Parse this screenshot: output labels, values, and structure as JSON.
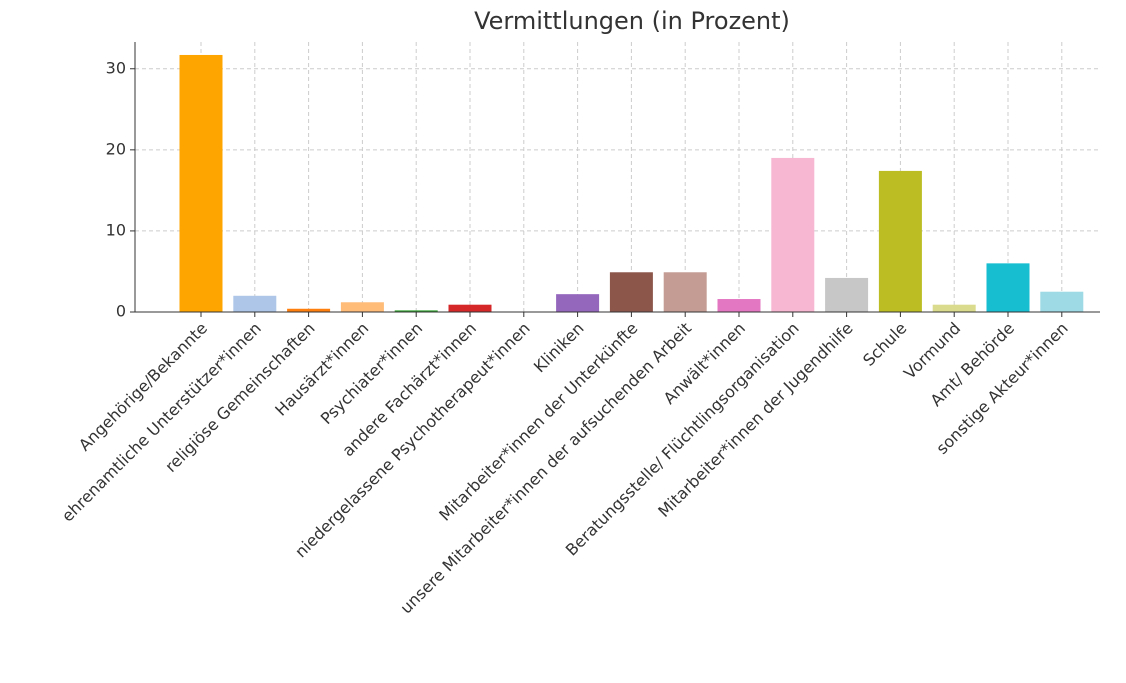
{
  "chart_data": {
    "type": "bar",
    "title": "Vermittlungen (in Prozent)",
    "categories": [
      "Angehörige/Bekannte",
      "ehrenamtliche Unterstützer*innen",
      "religiöse Gemeinschaften",
      "Hausärzt*innen",
      "Psychiater*innen",
      "andere Fachärzt*innen",
      "niedergelassene Psychotherapeut*innen",
      "Kliniken",
      "Mitarbeiter*innen der Unterkünfte",
      "unsere Mitarbeiter*innen der aufsuchenden Arbeit",
      "Anwält*innen",
      "Beratungsstelle/ Flüchtlingsorganisation",
      "Mitarbeiter*innen der Jugendhilfe",
      "Schule",
      "Vormund",
      "Amt/ Behörde",
      "sonstige Akteur*innen"
    ],
    "values": [
      31.7,
      2.0,
      0.4,
      1.2,
      0.2,
      0.9,
      0,
      2.2,
      4.9,
      4.9,
      1.6,
      19.0,
      4.2,
      17.4,
      0.9,
      6.0,
      2.5
    ],
    "colors": [
      "#ffa500",
      "#aec7e8",
      "#ff7f0e",
      "#ffbb78",
      "#2ca02c",
      "#d62728",
      "#ff9896",
      "#9467bd",
      "#8c564b",
      "#c49c94",
      "#e377c2",
      "#f7b6d2",
      "#c7c7c7",
      "#bcbd22",
      "#dbdb8d",
      "#17becf",
      "#9edae5"
    ],
    "ylim": [
      0,
      33.3
    ],
    "yticks": [
      0,
      10,
      20,
      30
    ],
    "grid": true
  }
}
